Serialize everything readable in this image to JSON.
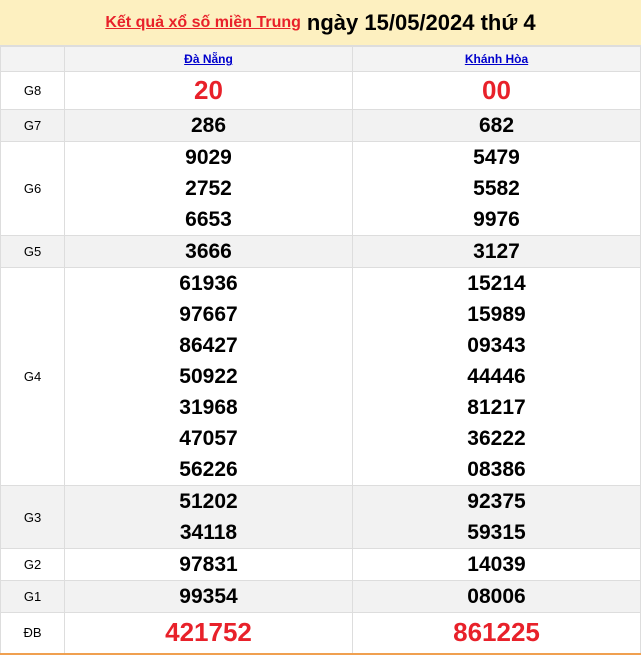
{
  "header": {
    "link": "Kết quả xổ số miền Trung",
    "title": "ngày 15/05/2024 thứ 4"
  },
  "columns": [
    "Đà Nẵng",
    "Khánh Hòa"
  ],
  "rows": [
    {
      "label": "G8",
      "a": [
        "20"
      ],
      "b": [
        "00"
      ]
    },
    {
      "label": "G7",
      "a": [
        "286"
      ],
      "b": [
        "682"
      ]
    },
    {
      "label": "G6",
      "a": [
        "9029",
        "2752",
        "6653"
      ],
      "b": [
        "5479",
        "5582",
        "9976"
      ]
    },
    {
      "label": "G5",
      "a": [
        "3666"
      ],
      "b": [
        "3127"
      ]
    },
    {
      "label": "G4",
      "a": [
        "61936",
        "97667",
        "86427",
        "50922",
        "31968",
        "47057",
        "56226"
      ],
      "b": [
        "15214",
        "15989",
        "09343",
        "44446",
        "81217",
        "36222",
        "08386"
      ]
    },
    {
      "label": "G3",
      "a": [
        "51202",
        "34118"
      ],
      "b": [
        "92375",
        "59315"
      ]
    },
    {
      "label": "G2",
      "a": [
        "97831"
      ],
      "b": [
        "14039"
      ]
    },
    {
      "label": "G1",
      "a": [
        "99354"
      ],
      "b": [
        "08006"
      ]
    },
    {
      "label": "ĐB",
      "a": [
        "421752"
      ],
      "b": [
        "861225"
      ]
    }
  ],
  "colors": {
    "highlight": "#e8212a",
    "header_bg": "#fdf0c0",
    "link": "#0000cc"
  }
}
